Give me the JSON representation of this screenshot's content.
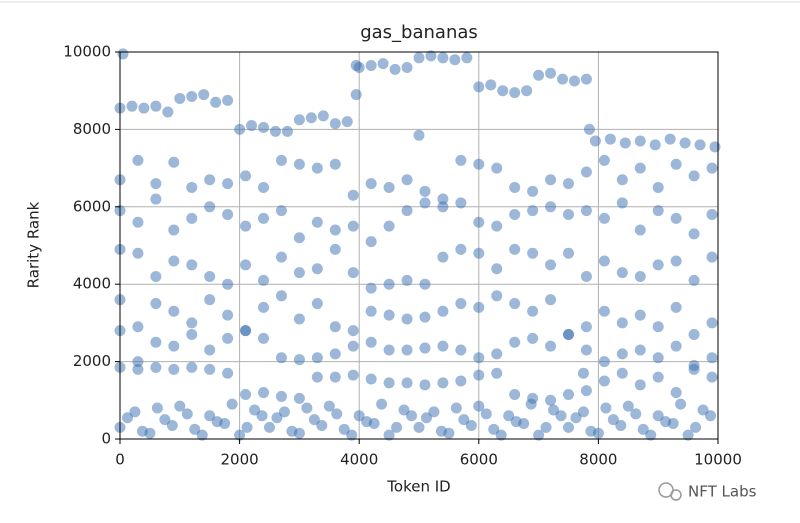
{
  "chart_data": {
    "type": "scatter",
    "title": "gas_bananas",
    "x_label": "Token ID",
    "y_label": "Rarity Rank",
    "color": "#3a70b0",
    "grid": true,
    "xlim": [
      0,
      10000
    ],
    "xticks": [
      0,
      2000,
      4000,
      6000,
      8000,
      10000
    ],
    "ylim": [
      0,
      10000
    ],
    "yticks": [
      0,
      2000,
      4000,
      6000,
      8000,
      10000
    ],
    "x": [
      0,
      200,
      400,
      600,
      800,
      1000,
      1200,
      1400,
      1600,
      1800,
      2000,
      2200,
      2400,
      2600,
      2800,
      3000,
      3200,
      3400,
      3600,
      3800,
      4000,
      4200,
      4400,
      4600,
      4800,
      5000,
      5200,
      5400,
      5600,
      5800,
      6000,
      6200,
      6400,
      6600,
      6800,
      7000,
      7200,
      7400,
      7600,
      7800,
      7950,
      8200,
      8450,
      8700,
      8950,
      9200,
      9450,
      9700,
      9950,
      0,
      300,
      600,
      900,
      1200,
      1500,
      1800,
      2100,
      2400,
      2700,
      3000,
      3300,
      3600,
      3900,
      4200,
      4500,
      4800,
      5100,
      5400,
      5700,
      6000,
      6300,
      6600,
      6900,
      7200,
      7500,
      7800,
      8100,
      8400,
      8700,
      9000,
      9300,
      9600,
      9900,
      0,
      300,
      600,
      900,
      1200,
      1500,
      1800,
      2100,
      2400,
      2700,
      3000,
      3300,
      3600,
      3900,
      4200,
      4500,
      4800,
      5100,
      5400,
      5700,
      6000,
      6300,
      6600,
      6900,
      7200,
      7500,
      7800,
      8100,
      8400,
      8700,
      9000,
      9300,
      9600,
      9900,
      0,
      300,
      600,
      900,
      1200,
      1500,
      1800,
      2100,
      2400,
      2700,
      3000,
      3300,
      3600,
      3900,
      4200,
      4500,
      4800,
      5100,
      5400,
      5700,
      6000,
      6300,
      6600,
      6900,
      7200,
      7500,
      7800,
      8100,
      8400,
      8700,
      9000,
      9300,
      9600,
      9900,
      0,
      300,
      600,
      900,
      1200,
      1500,
      1800,
      2100,
      2400,
      2700,
      3000,
      3300,
      3600,
      3900,
      4200,
      4500,
      4800,
      5100,
      5400,
      5700,
      6000,
      6300,
      6600,
      6900,
      7200,
      7500,
      7800,
      8100,
      8400,
      8700,
      9000,
      9300,
      9600,
      9900,
      0,
      300,
      600,
      900,
      1200,
      1500,
      1800,
      2100,
      2400,
      2700,
      3000,
      3300,
      3600,
      3900,
      4200,
      4500,
      4800,
      5100,
      5400,
      5700,
      6000,
      6300,
      6600,
      6900,
      7200,
      7500,
      7800,
      8100,
      8400,
      8700,
      9000,
      9300,
      9600,
      9900,
      0,
      300,
      600,
      900,
      1200,
      1500,
      1800,
      2100,
      2400,
      2700,
      3000,
      3300,
      3600,
      3900,
      4200,
      4500,
      4800,
      5100,
      5400,
      5700,
      6000,
      6300,
      6600,
      6900,
      7200,
      7500,
      7800,
      8100,
      8400,
      8700,
      9000,
      9300,
      9600,
      9900,
      0,
      250,
      500,
      750,
      1000,
      1250,
      1500,
      1750,
      2000,
      2250,
      2500,
      2750,
      3000,
      3250,
      3500,
      3750,
      4000,
      4250,
      4500,
      4750,
      5000,
      5250,
      5500,
      5750,
      6000,
      6250,
      6500,
      6750,
      7000,
      7250,
      7500,
      7750,
      8000,
      8250,
      8500,
      8750,
      9000,
      9250,
      9500,
      9750,
      125,
      375,
      625,
      875,
      1125,
      1375,
      1625,
      1875,
      2125,
      2375,
      2625,
      2875,
      3125,
      3375,
      3625,
      3875,
      4125,
      4375,
      4625,
      4875,
      5125,
      5375,
      5625,
      5875,
      6125,
      6375,
      6625,
      6875,
      7125,
      7375,
      7625,
      7875,
      8125,
      8375,
      8625,
      8875,
      9125,
      9375,
      9625,
      9875,
      50,
      3950,
      3950,
      5000,
      7850,
      7750
    ],
    "values": [
      8550,
      8600,
      8550,
      8600,
      8450,
      8800,
      8850,
      8900,
      8700,
      8750,
      8000,
      8100,
      8050,
      7950,
      7950,
      8250,
      8300,
      8350,
      8150,
      8200,
      9600,
      9650,
      9700,
      9550,
      9600,
      9850,
      9900,
      9850,
      9800,
      9850,
      9100,
      9150,
      9000,
      8950,
      9000,
      9400,
      9450,
      9300,
      9250,
      9300,
      7700,
      7750,
      7650,
      7700,
      7600,
      7750,
      7650,
      7600,
      7550,
      6700,
      7200,
      6600,
      7150,
      6500,
      6700,
      6600,
      6800,
      6500,
      7200,
      7100,
      7000,
      7100,
      6300,
      6600,
      6500,
      6700,
      6400,
      6200,
      7200,
      7100,
      7000,
      6500,
      6400,
      6700,
      6600,
      6900,
      7200,
      6700,
      7000,
      6500,
      7100,
      6800,
      7000,
      5900,
      5600,
      6200,
      5400,
      5700,
      6000,
      5800,
      5500,
      5700,
      5900,
      5200,
      5600,
      5400,
      5500,
      5100,
      5500,
      5900,
      6100,
      6000,
      6100,
      5600,
      5500,
      5800,
      5900,
      6000,
      5800,
      5900,
      5700,
      6100,
      5400,
      5900,
      5700,
      5300,
      5800,
      4900,
      4800,
      4200,
      4600,
      4500,
      4200,
      4000,
      4500,
      4100,
      4700,
      4300,
      4400,
      4900,
      4300,
      3900,
      4000,
      4100,
      4000,
      4700,
      4900,
      4800,
      4400,
      4900,
      4800,
      4500,
      4800,
      4200,
      4600,
      4300,
      4200,
      4500,
      4600,
      4100,
      4700,
      3600,
      2900,
      3500,
      3300,
      3000,
      3600,
      3200,
      2800,
      3400,
      3700,
      3100,
      3500,
      2900,
      2800,
      3300,
      3200,
      3100,
      3150,
      3300,
      3500,
      3400,
      3700,
      3500,
      3300,
      3600,
      2700,
      2900,
      3300,
      3000,
      3200,
      2900,
      3400,
      2700,
      3000,
      2800,
      2000,
      2500,
      2400,
      2700,
      2300,
      2600,
      2800,
      2600,
      2100,
      2050,
      2100,
      2200,
      2400,
      2500,
      2300,
      2300,
      2350,
      2400,
      2300,
      2100,
      2200,
      2500,
      2600,
      2400,
      2700,
      2300,
      2000,
      2200,
      2300,
      2100,
      2400,
      1900,
      2100,
      1850,
      1800,
      1850,
      1800,
      1850,
      1800,
      1700,
      1150,
      1200,
      1100,
      1050,
      1600,
      1600,
      1650,
      1550,
      1450,
      1450,
      1400,
      1450,
      1500,
      1650,
      1700,
      1150,
      1050,
      1000,
      1150,
      1250,
      1500,
      1700,
      1400,
      1600,
      1200,
      1800,
      1600,
      300,
      700,
      150,
      500,
      850,
      250,
      600,
      400,
      100,
      750,
      300,
      700,
      150,
      500,
      850,
      250,
      600,
      400,
      100,
      750,
      300,
      700,
      150,
      500,
      850,
      250,
      600,
      400,
      100,
      750,
      300,
      700,
      150,
      500,
      850,
      250,
      600,
      400,
      100,
      750,
      550,
      200,
      800,
      350,
      650,
      100,
      450,
      900,
      300,
      600,
      550,
      200,
      800,
      350,
      650,
      100,
      450,
      900,
      300,
      600,
      550,
      200,
      800,
      350,
      650,
      100,
      450,
      900,
      300,
      600,
      550,
      200,
      800,
      350,
      650,
      100,
      450,
      900,
      300,
      600,
      9950,
      8900,
      9650,
      7850,
      8000,
      1700
    ]
  },
  "watermark": "NFT Labs"
}
